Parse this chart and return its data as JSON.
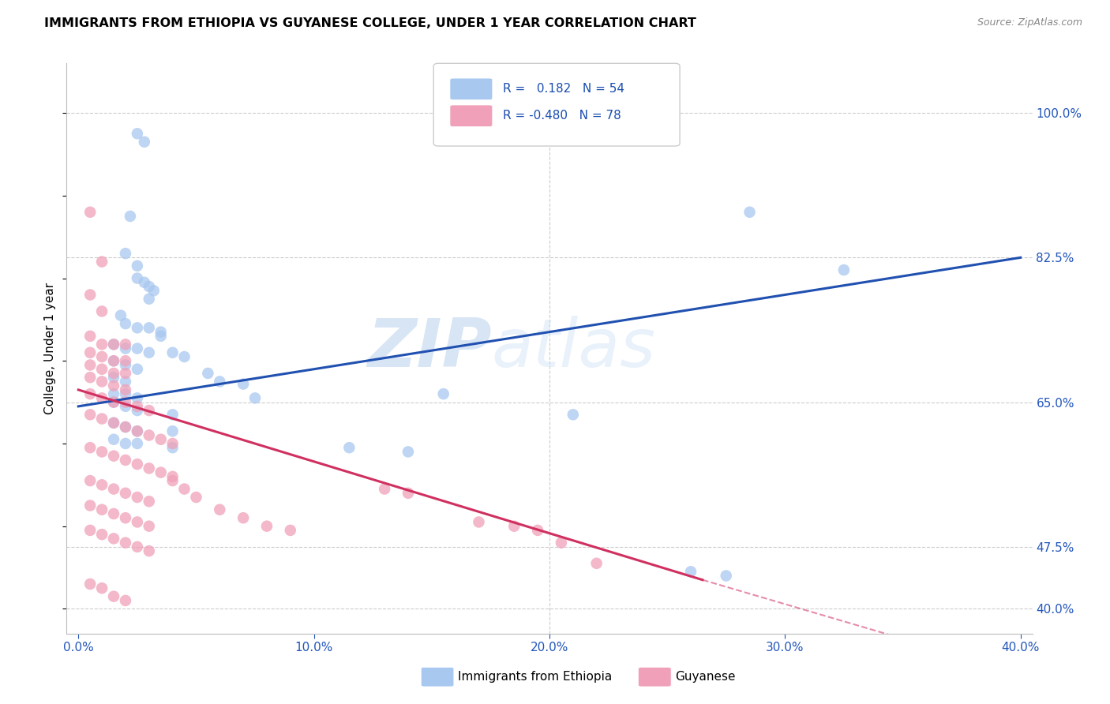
{
  "title": "IMMIGRANTS FROM ETHIOPIA VS GUYANESE COLLEGE, UNDER 1 YEAR CORRELATION CHART",
  "source": "Source: ZipAtlas.com",
  "xlabel_ticks": [
    "0.0%",
    "10.0%",
    "20.0%",
    "30.0%",
    "40.0%"
  ],
  "xlabel_vals": [
    0.0,
    0.1,
    0.2,
    0.3,
    0.4
  ],
  "ylabel": "College, Under 1 year",
  "ylabel_ticks": [
    "100.0%",
    "82.5%",
    "65.0%",
    "47.5%",
    "40.0%"
  ],
  "ylabel_vals": [
    1.0,
    0.825,
    0.65,
    0.475,
    0.4
  ],
  "xlim": [
    -0.005,
    0.405
  ],
  "ylim": [
    0.37,
    1.06
  ],
  "r_ethiopia": 0.182,
  "n_ethiopia": 54,
  "r_guyanese": -0.48,
  "n_guyanese": 78,
  "color_ethiopia": "#a8c8f0",
  "color_guyanese": "#f0a0b8",
  "color_line_ethiopia": "#2050b0",
  "color_line_guyanese": "#d03060",
  "watermark_zip": "ZIP",
  "watermark_atlas": "atlas",
  "legend_ethiopia": "Immigrants from Ethiopia",
  "legend_guyanese": "Guyanese",
  "line_ethiopia": [
    [
      0.0,
      0.645
    ],
    [
      0.4,
      0.825
    ]
  ],
  "line_guyanese_solid": [
    [
      0.0,
      0.665
    ],
    [
      0.265,
      0.435
    ]
  ],
  "line_guyanese_dashed": [
    [
      0.265,
      0.435
    ],
    [
      0.4,
      0.322
    ]
  ],
  "scatter_ethiopia": [
    [
      0.025,
      0.975
    ],
    [
      0.028,
      0.965
    ],
    [
      0.022,
      0.875
    ],
    [
      0.02,
      0.83
    ],
    [
      0.025,
      0.815
    ],
    [
      0.025,
      0.8
    ],
    [
      0.028,
      0.795
    ],
    [
      0.03,
      0.79
    ],
    [
      0.032,
      0.785
    ],
    [
      0.03,
      0.775
    ],
    [
      0.018,
      0.755
    ],
    [
      0.02,
      0.745
    ],
    [
      0.025,
      0.74
    ],
    [
      0.03,
      0.74
    ],
    [
      0.035,
      0.735
    ],
    [
      0.035,
      0.73
    ],
    [
      0.015,
      0.72
    ],
    [
      0.02,
      0.715
    ],
    [
      0.025,
      0.715
    ],
    [
      0.03,
      0.71
    ],
    [
      0.04,
      0.71
    ],
    [
      0.045,
      0.705
    ],
    [
      0.015,
      0.7
    ],
    [
      0.02,
      0.695
    ],
    [
      0.025,
      0.69
    ],
    [
      0.055,
      0.685
    ],
    [
      0.015,
      0.68
    ],
    [
      0.02,
      0.675
    ],
    [
      0.06,
      0.675
    ],
    [
      0.07,
      0.672
    ],
    [
      0.015,
      0.66
    ],
    [
      0.02,
      0.66
    ],
    [
      0.025,
      0.655
    ],
    [
      0.075,
      0.655
    ],
    [
      0.015,
      0.65
    ],
    [
      0.02,
      0.645
    ],
    [
      0.025,
      0.64
    ],
    [
      0.04,
      0.635
    ],
    [
      0.015,
      0.625
    ],
    [
      0.02,
      0.62
    ],
    [
      0.025,
      0.615
    ],
    [
      0.04,
      0.615
    ],
    [
      0.015,
      0.605
    ],
    [
      0.02,
      0.6
    ],
    [
      0.025,
      0.6
    ],
    [
      0.04,
      0.595
    ],
    [
      0.115,
      0.595
    ],
    [
      0.14,
      0.59
    ],
    [
      0.155,
      0.66
    ],
    [
      0.21,
      0.635
    ],
    [
      0.285,
      0.88
    ],
    [
      0.325,
      0.81
    ],
    [
      0.26,
      0.445
    ],
    [
      0.275,
      0.44
    ]
  ],
  "scatter_guyanese": [
    [
      0.005,
      0.88
    ],
    [
      0.01,
      0.82
    ],
    [
      0.005,
      0.78
    ],
    [
      0.01,
      0.76
    ],
    [
      0.005,
      0.73
    ],
    [
      0.01,
      0.72
    ],
    [
      0.015,
      0.72
    ],
    [
      0.02,
      0.72
    ],
    [
      0.005,
      0.71
    ],
    [
      0.01,
      0.705
    ],
    [
      0.015,
      0.7
    ],
    [
      0.02,
      0.7
    ],
    [
      0.005,
      0.695
    ],
    [
      0.01,
      0.69
    ],
    [
      0.015,
      0.685
    ],
    [
      0.02,
      0.685
    ],
    [
      0.005,
      0.68
    ],
    [
      0.01,
      0.675
    ],
    [
      0.015,
      0.67
    ],
    [
      0.02,
      0.665
    ],
    [
      0.005,
      0.66
    ],
    [
      0.01,
      0.655
    ],
    [
      0.015,
      0.65
    ],
    [
      0.02,
      0.65
    ],
    [
      0.025,
      0.645
    ],
    [
      0.03,
      0.64
    ],
    [
      0.005,
      0.635
    ],
    [
      0.01,
      0.63
    ],
    [
      0.015,
      0.625
    ],
    [
      0.02,
      0.62
    ],
    [
      0.025,
      0.615
    ],
    [
      0.03,
      0.61
    ],
    [
      0.035,
      0.605
    ],
    [
      0.04,
      0.6
    ],
    [
      0.005,
      0.595
    ],
    [
      0.01,
      0.59
    ],
    [
      0.015,
      0.585
    ],
    [
      0.02,
      0.58
    ],
    [
      0.025,
      0.575
    ],
    [
      0.03,
      0.57
    ],
    [
      0.035,
      0.565
    ],
    [
      0.04,
      0.56
    ],
    [
      0.005,
      0.555
    ],
    [
      0.01,
      0.55
    ],
    [
      0.015,
      0.545
    ],
    [
      0.02,
      0.54
    ],
    [
      0.025,
      0.535
    ],
    [
      0.03,
      0.53
    ],
    [
      0.005,
      0.525
    ],
    [
      0.01,
      0.52
    ],
    [
      0.015,
      0.515
    ],
    [
      0.02,
      0.51
    ],
    [
      0.025,
      0.505
    ],
    [
      0.03,
      0.5
    ],
    [
      0.005,
      0.495
    ],
    [
      0.01,
      0.49
    ],
    [
      0.015,
      0.485
    ],
    [
      0.02,
      0.48
    ],
    [
      0.025,
      0.475
    ],
    [
      0.03,
      0.47
    ],
    [
      0.04,
      0.555
    ],
    [
      0.045,
      0.545
    ],
    [
      0.05,
      0.535
    ],
    [
      0.06,
      0.52
    ],
    [
      0.07,
      0.51
    ],
    [
      0.08,
      0.5
    ],
    [
      0.09,
      0.495
    ],
    [
      0.13,
      0.545
    ],
    [
      0.14,
      0.54
    ],
    [
      0.17,
      0.505
    ],
    [
      0.185,
      0.5
    ],
    [
      0.195,
      0.495
    ],
    [
      0.205,
      0.48
    ],
    [
      0.22,
      0.455
    ],
    [
      0.005,
      0.43
    ],
    [
      0.01,
      0.425
    ],
    [
      0.015,
      0.415
    ],
    [
      0.02,
      0.41
    ]
  ]
}
